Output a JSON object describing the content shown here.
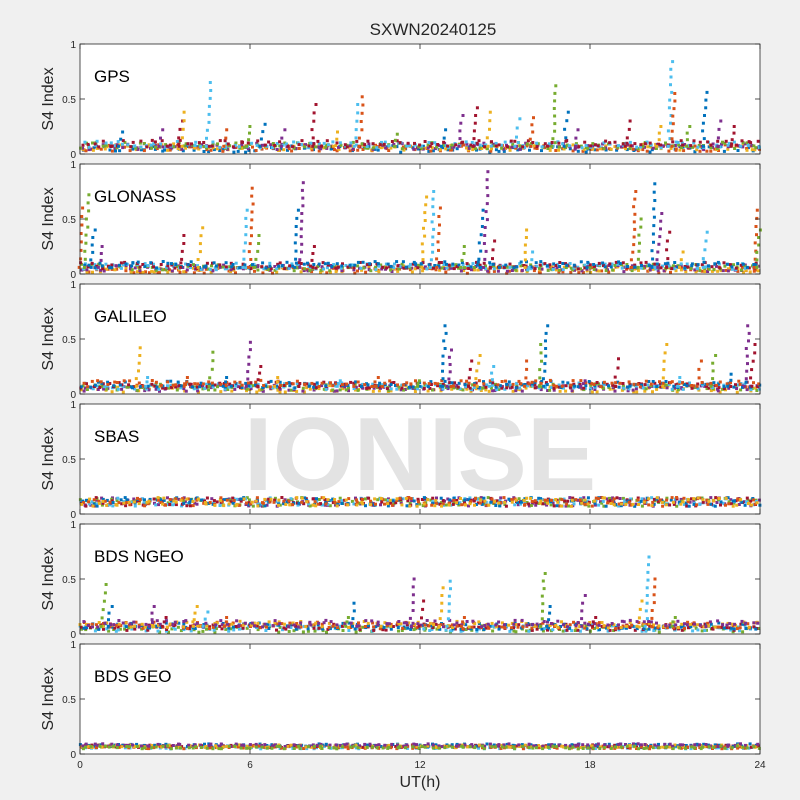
{
  "figure": {
    "title": "SXWN20240125",
    "xlabel": "UT(h)",
    "watermark": "IONISE"
  },
  "chart_data": [
    {
      "type": "scatter",
      "name": "GPS",
      "ylabel": "S4 Index",
      "xlim": [
        0,
        24
      ],
      "ylim": [
        0,
        1
      ],
      "xticks": [
        0,
        6,
        12,
        18,
        24
      ],
      "yticks": [
        0,
        0.5,
        1
      ],
      "baseline": 0.07,
      "spikes": [
        {
          "x": 1.5,
          "y": 0.2
        },
        {
          "x": 2.9,
          "y": 0.22
        },
        {
          "x": 3.6,
          "y": 0.3
        },
        {
          "x": 3.7,
          "y": 0.38
        },
        {
          "x": 4.6,
          "y": 0.65
        },
        {
          "x": 5.2,
          "y": 0.22
        },
        {
          "x": 6.0,
          "y": 0.25
        },
        {
          "x": 6.5,
          "y": 0.27
        },
        {
          "x": 7.2,
          "y": 0.22
        },
        {
          "x": 8.3,
          "y": 0.45
        },
        {
          "x": 9.1,
          "y": 0.2
        },
        {
          "x": 9.8,
          "y": 0.45
        },
        {
          "x": 10.0,
          "y": 0.52
        },
        {
          "x": 11.2,
          "y": 0.18
        },
        {
          "x": 12.9,
          "y": 0.22
        },
        {
          "x": 13.5,
          "y": 0.35
        },
        {
          "x": 14.0,
          "y": 0.42
        },
        {
          "x": 14.5,
          "y": 0.38
        },
        {
          "x": 15.5,
          "y": 0.32
        },
        {
          "x": 16.0,
          "y": 0.33
        },
        {
          "x": 16.8,
          "y": 0.62
        },
        {
          "x": 17.2,
          "y": 0.38
        },
        {
          "x": 17.6,
          "y": 0.22
        },
        {
          "x": 19.4,
          "y": 0.3
        },
        {
          "x": 20.5,
          "y": 0.25
        },
        {
          "x": 20.9,
          "y": 0.84
        },
        {
          "x": 21.0,
          "y": 0.55
        },
        {
          "x": 21.5,
          "y": 0.25
        },
        {
          "x": 22.1,
          "y": 0.56
        },
        {
          "x": 22.6,
          "y": 0.3
        },
        {
          "x": 23.1,
          "y": 0.25
        }
      ]
    },
    {
      "type": "scatter",
      "name": "GLONASS",
      "ylabel": "S4 Index",
      "xlim": [
        0,
        24
      ],
      "ylim": [
        0,
        1
      ],
      "xticks": [
        0,
        6,
        12,
        18,
        24
      ],
      "yticks": [
        0,
        0.5,
        1
      ],
      "baseline": 0.06,
      "spikes": [
        {
          "x": 0.1,
          "y": 0.6
        },
        {
          "x": 0.3,
          "y": 0.72
        },
        {
          "x": 0.5,
          "y": 0.4
        },
        {
          "x": 0.8,
          "y": 0.25
        },
        {
          "x": 3.7,
          "y": 0.35
        },
        {
          "x": 4.3,
          "y": 0.42
        },
        {
          "x": 5.9,
          "y": 0.58
        },
        {
          "x": 6.1,
          "y": 0.78
        },
        {
          "x": 6.3,
          "y": 0.35
        },
        {
          "x": 7.7,
          "y": 0.58
        },
        {
          "x": 7.9,
          "y": 0.83
        },
        {
          "x": 8.3,
          "y": 0.25
        },
        {
          "x": 12.2,
          "y": 0.7
        },
        {
          "x": 12.5,
          "y": 0.75
        },
        {
          "x": 12.7,
          "y": 0.6
        },
        {
          "x": 13.6,
          "y": 0.25
        },
        {
          "x": 14.2,
          "y": 0.58
        },
        {
          "x": 14.4,
          "y": 0.93
        },
        {
          "x": 14.6,
          "y": 0.3
        },
        {
          "x": 15.8,
          "y": 0.4
        },
        {
          "x": 16.0,
          "y": 0.2
        },
        {
          "x": 19.6,
          "y": 0.75
        },
        {
          "x": 19.8,
          "y": 0.5
        },
        {
          "x": 20.3,
          "y": 0.82
        },
        {
          "x": 20.5,
          "y": 0.55
        },
        {
          "x": 20.8,
          "y": 0.38
        },
        {
          "x": 21.3,
          "y": 0.2
        },
        {
          "x": 22.1,
          "y": 0.38
        },
        {
          "x": 23.9,
          "y": 0.58
        },
        {
          "x": 24.0,
          "y": 0.4
        }
      ]
    },
    {
      "type": "scatter",
      "name": "GALILEO",
      "ylabel": "S4 Index",
      "xlim": [
        0,
        24
      ],
      "ylim": [
        0,
        1
      ],
      "xticks": [
        0,
        6,
        12,
        18,
        24
      ],
      "yticks": [
        0,
        0.5,
        1
      ],
      "baseline": 0.07,
      "spikes": [
        {
          "x": 2.1,
          "y": 0.42
        },
        {
          "x": 2.4,
          "y": 0.15
        },
        {
          "x": 3.8,
          "y": 0.15
        },
        {
          "x": 4.7,
          "y": 0.38
        },
        {
          "x": 5.2,
          "y": 0.15
        },
        {
          "x": 6.0,
          "y": 0.47
        },
        {
          "x": 6.4,
          "y": 0.25
        },
        {
          "x": 7.0,
          "y": 0.15
        },
        {
          "x": 9.2,
          "y": 0.12
        },
        {
          "x": 10.5,
          "y": 0.15
        },
        {
          "x": 12.0,
          "y": 0.12
        },
        {
          "x": 12.9,
          "y": 0.62
        },
        {
          "x": 13.1,
          "y": 0.4
        },
        {
          "x": 13.8,
          "y": 0.3
        },
        {
          "x": 14.1,
          "y": 0.35
        },
        {
          "x": 14.6,
          "y": 0.25
        },
        {
          "x": 15.8,
          "y": 0.3
        },
        {
          "x": 16.3,
          "y": 0.45
        },
        {
          "x": 16.5,
          "y": 0.62
        },
        {
          "x": 17.8,
          "y": 0.12
        },
        {
          "x": 19.0,
          "y": 0.32
        },
        {
          "x": 20.7,
          "y": 0.45
        },
        {
          "x": 21.2,
          "y": 0.15
        },
        {
          "x": 21.9,
          "y": 0.3
        },
        {
          "x": 22.4,
          "y": 0.35
        },
        {
          "x": 23.0,
          "y": 0.18
        },
        {
          "x": 23.6,
          "y": 0.62
        },
        {
          "x": 23.8,
          "y": 0.45
        }
      ]
    },
    {
      "type": "scatter",
      "name": "SBAS",
      "ylabel": "S4 Index",
      "xlim": [
        0,
        24
      ],
      "ylim": [
        0,
        1
      ],
      "xticks": [
        0,
        6,
        12,
        18,
        24
      ],
      "yticks": [
        0,
        0.5,
        1
      ],
      "baseline": 0.12,
      "spikes": []
    },
    {
      "type": "scatter",
      "name": "BDS NGEO",
      "ylabel": "S4 Index",
      "xlim": [
        0,
        24
      ],
      "ylim": [
        0,
        1
      ],
      "xticks": [
        0,
        6,
        12,
        18,
        24
      ],
      "yticks": [
        0,
        0.5,
        1
      ],
      "baseline": 0.07,
      "spikes": [
        {
          "x": 0.9,
          "y": 0.45
        },
        {
          "x": 1.1,
          "y": 0.25
        },
        {
          "x": 2.6,
          "y": 0.25
        },
        {
          "x": 3.0,
          "y": 0.15
        },
        {
          "x": 4.1,
          "y": 0.25
        },
        {
          "x": 4.5,
          "y": 0.2
        },
        {
          "x": 5.2,
          "y": 0.15
        },
        {
          "x": 9.5,
          "y": 0.15
        },
        {
          "x": 9.7,
          "y": 0.28
        },
        {
          "x": 11.8,
          "y": 0.5
        },
        {
          "x": 12.1,
          "y": 0.3
        },
        {
          "x": 12.8,
          "y": 0.42
        },
        {
          "x": 13.1,
          "y": 0.48
        },
        {
          "x": 13.6,
          "y": 0.15
        },
        {
          "x": 16.4,
          "y": 0.55
        },
        {
          "x": 16.6,
          "y": 0.25
        },
        {
          "x": 17.8,
          "y": 0.35
        },
        {
          "x": 18.2,
          "y": 0.15
        },
        {
          "x": 19.8,
          "y": 0.3
        },
        {
          "x": 20.1,
          "y": 0.7
        },
        {
          "x": 20.3,
          "y": 0.5
        },
        {
          "x": 21.0,
          "y": 0.15
        }
      ]
    },
    {
      "type": "scatter",
      "name": "BDS GEO",
      "ylabel": "S4 Index",
      "xlim": [
        0,
        24
      ],
      "ylim": [
        0,
        1
      ],
      "xticks": [
        0,
        6,
        12,
        18,
        24
      ],
      "yticks": [
        0,
        0.5,
        1
      ],
      "baseline": 0.07,
      "spikes": []
    }
  ],
  "colors": {
    "series": [
      "#0072BD",
      "#D95319",
      "#EDB120",
      "#7E2F8E",
      "#77AC30",
      "#4DBEEE",
      "#A2142F"
    ],
    "axes_bg": "#ffffff",
    "figure_bg": "#f0f0f0",
    "axis_line": "#262626"
  }
}
